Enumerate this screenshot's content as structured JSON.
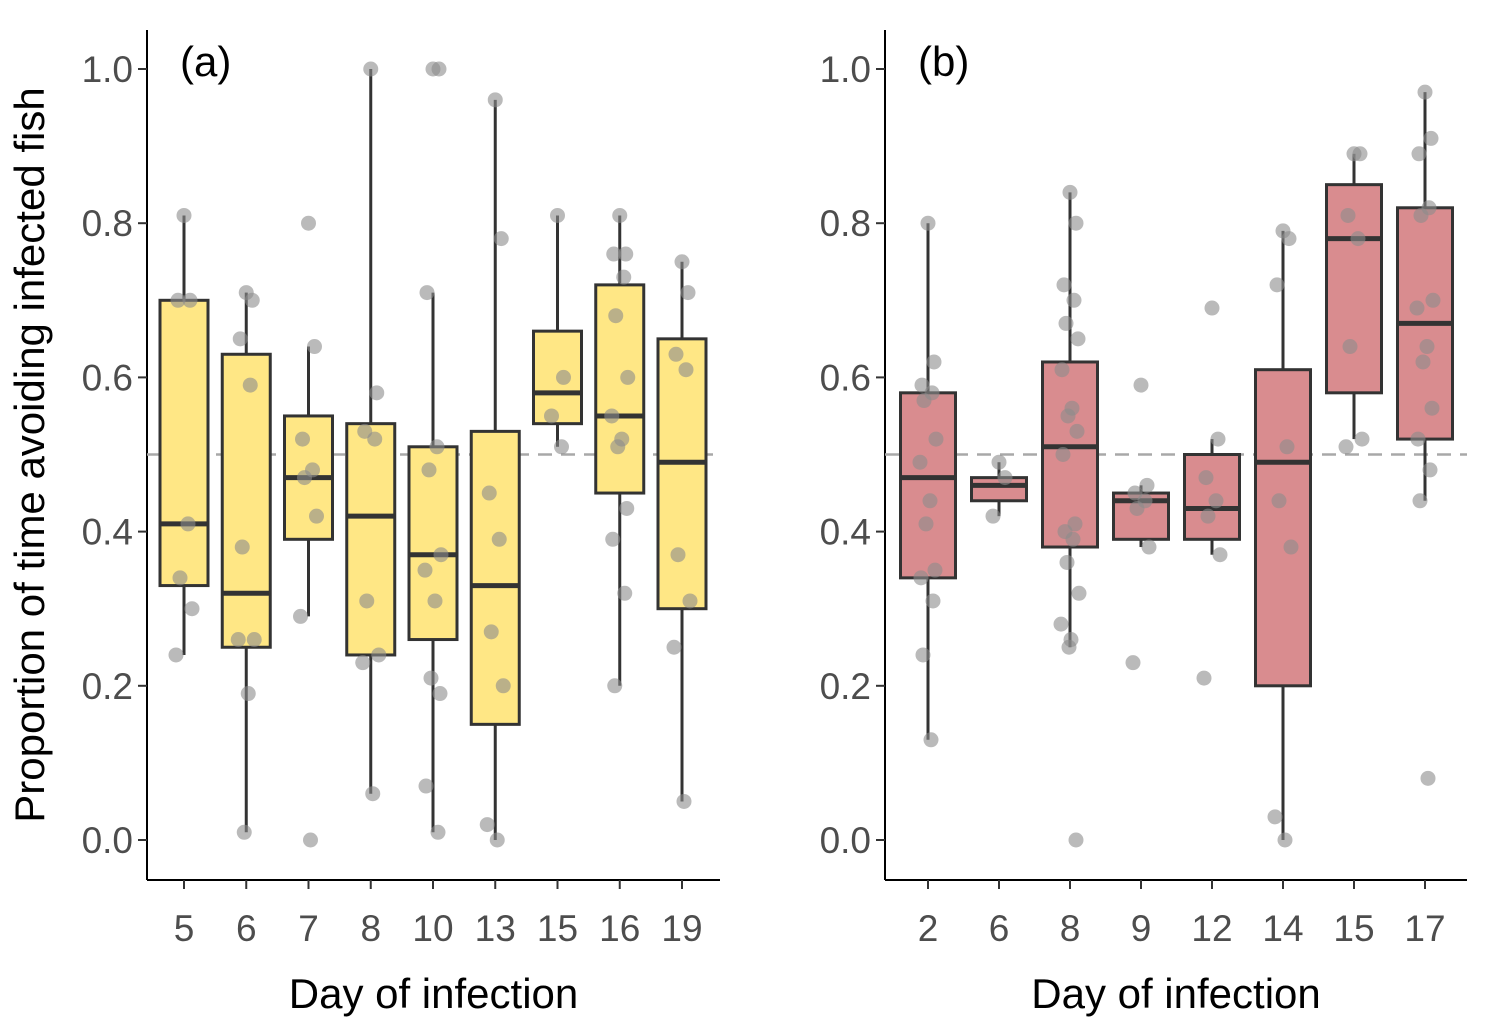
{
  "ylabel": "Proportion of time avoiding infected fish",
  "chart_data": [
    {
      "type": "box",
      "panel_label": "(a)",
      "xlabel": "Day of infection",
      "ylabel": "Proportion of time avoiding infected fish",
      "ylim": [
        -0.05,
        1.05
      ],
      "yticks": [
        "0.0",
        "0.2",
        "0.4",
        "0.6",
        "0.8",
        "1.0"
      ],
      "reference_line": 0.5,
      "box_color": "#ffe785",
      "grid": false,
      "categories": [
        "5",
        "6",
        "7",
        "8",
        "10",
        "13",
        "15",
        "16",
        "19"
      ],
      "boxes": [
        {
          "x": "5",
          "min": 0.24,
          "q1": 0.33,
          "median": 0.41,
          "q3": 0.7,
          "max": 0.81
        },
        {
          "x": "6",
          "min": 0.01,
          "q1": 0.25,
          "median": 0.32,
          "q3": 0.63,
          "max": 0.71
        },
        {
          "x": "7",
          "min": 0.29,
          "q1": 0.39,
          "median": 0.47,
          "q3": 0.55,
          "max": 0.64
        },
        {
          "x": "8",
          "min": 0.06,
          "q1": 0.24,
          "median": 0.42,
          "q3": 0.54,
          "max": 1.0
        },
        {
          "x": "10",
          "min": 0.01,
          "q1": 0.26,
          "median": 0.37,
          "q3": 0.51,
          "max": 0.71
        },
        {
          "x": "13",
          "min": 0.0,
          "q1": 0.15,
          "median": 0.33,
          "q3": 0.53,
          "max": 0.96
        },
        {
          "x": "15",
          "min": 0.51,
          "q1": 0.54,
          "median": 0.58,
          "q3": 0.66,
          "max": 0.81
        },
        {
          "x": "16",
          "min": 0.2,
          "q1": 0.45,
          "median": 0.55,
          "q3": 0.72,
          "max": 0.81
        },
        {
          "x": "19",
          "min": 0.05,
          "q1": 0.3,
          "median": 0.49,
          "q3": 0.65,
          "max": 0.75
        }
      ],
      "points": [
        {
          "x": "5",
          "y": [
            0.81,
            0.7,
            0.7,
            0.41,
            0.34,
            0.3,
            0.24
          ]
        },
        {
          "x": "6",
          "y": [
            0.71,
            0.7,
            0.65,
            0.59,
            0.38,
            0.26,
            0.26,
            0.19,
            0.01
          ]
        },
        {
          "x": "7",
          "y": [
            0.8,
            0.64,
            0.52,
            0.48,
            0.47,
            0.42,
            0.29,
            0.0
          ]
        },
        {
          "x": "8",
          "y": [
            1.0,
            0.58,
            0.53,
            0.52,
            0.31,
            0.24,
            0.23,
            0.06
          ]
        },
        {
          "x": "10",
          "y": [
            1.0,
            1.0,
            0.71,
            0.51,
            0.48,
            0.37,
            0.35,
            0.31,
            0.21,
            0.19,
            0.07,
            0.01
          ]
        },
        {
          "x": "13",
          "y": [
            0.96,
            0.78,
            0.45,
            0.39,
            0.27,
            0.2,
            0.02,
            0.0
          ]
        },
        {
          "x": "15",
          "y": [
            0.81,
            0.6,
            0.55,
            0.51
          ]
        },
        {
          "x": "16",
          "y": [
            0.81,
            0.76,
            0.76,
            0.73,
            0.68,
            0.6,
            0.55,
            0.52,
            0.51,
            0.43,
            0.39,
            0.32,
            0.2
          ]
        },
        {
          "x": "19",
          "y": [
            0.75,
            0.71,
            0.63,
            0.61,
            0.37,
            0.31,
            0.25,
            0.05
          ]
        }
      ]
    },
    {
      "type": "box",
      "panel_label": "(b)",
      "xlabel": "Day of infection",
      "ylim": [
        -0.05,
        1.05
      ],
      "yticks": [
        "0.0",
        "0.2",
        "0.4",
        "0.6",
        "0.8",
        "1.0"
      ],
      "reference_line": 0.5,
      "box_color": "#d98c8f",
      "grid": false,
      "categories": [
        "2",
        "6",
        "8",
        "9",
        "12",
        "14",
        "15",
        "17"
      ],
      "boxes": [
        {
          "x": "2",
          "min": 0.13,
          "q1": 0.34,
          "median": 0.47,
          "q3": 0.58,
          "max": 0.8
        },
        {
          "x": "6",
          "min": 0.42,
          "q1": 0.44,
          "median": 0.46,
          "q3": 0.47,
          "max": 0.49
        },
        {
          "x": "8",
          "min": 0.25,
          "q1": 0.38,
          "median": 0.51,
          "q3": 0.62,
          "max": 0.84
        },
        {
          "x": "9",
          "min": 0.38,
          "q1": 0.39,
          "median": 0.44,
          "q3": 0.45,
          "max": 0.46
        },
        {
          "x": "12",
          "min": 0.37,
          "q1": 0.39,
          "median": 0.43,
          "q3": 0.5,
          "max": 0.52
        },
        {
          "x": "14",
          "min": 0.0,
          "q1": 0.2,
          "median": 0.49,
          "q3": 0.61,
          "max": 0.79
        },
        {
          "x": "15",
          "min": 0.52,
          "q1": 0.58,
          "median": 0.78,
          "q3": 0.85,
          "max": 0.89
        },
        {
          "x": "17",
          "min": 0.44,
          "q1": 0.52,
          "median": 0.67,
          "q3": 0.82,
          "max": 0.97
        }
      ],
      "points": [
        {
          "x": "2",
          "y": [
            0.8,
            0.62,
            0.59,
            0.58,
            0.57,
            0.52,
            0.49,
            0.44,
            0.41,
            0.35,
            0.34,
            0.31,
            0.24,
            0.13
          ]
        },
        {
          "x": "6",
          "y": [
            0.49,
            0.47,
            0.42
          ]
        },
        {
          "x": "8",
          "y": [
            0.84,
            0.8,
            0.72,
            0.7,
            0.67,
            0.65,
            0.61,
            0.56,
            0.55,
            0.53,
            0.5,
            0.41,
            0.4,
            0.39,
            0.36,
            0.32,
            0.28,
            0.26,
            0.25,
            0.0
          ]
        },
        {
          "x": "9",
          "y": [
            0.59,
            0.46,
            0.45,
            0.44,
            0.43,
            0.38,
            0.23
          ]
        },
        {
          "x": "12",
          "y": [
            0.69,
            0.52,
            0.47,
            0.44,
            0.42,
            0.37,
            0.21
          ]
        },
        {
          "x": "14",
          "y": [
            0.79,
            0.78,
            0.72,
            0.51,
            0.44,
            0.38,
            0.03,
            0.0
          ]
        },
        {
          "x": "15",
          "y": [
            0.89,
            0.89,
            0.81,
            0.78,
            0.64,
            0.52,
            0.51
          ]
        },
        {
          "x": "17",
          "y": [
            0.97,
            0.91,
            0.89,
            0.82,
            0.81,
            0.7,
            0.69,
            0.64,
            0.62,
            0.56,
            0.52,
            0.48,
            0.44,
            0.08
          ]
        }
      ]
    }
  ]
}
